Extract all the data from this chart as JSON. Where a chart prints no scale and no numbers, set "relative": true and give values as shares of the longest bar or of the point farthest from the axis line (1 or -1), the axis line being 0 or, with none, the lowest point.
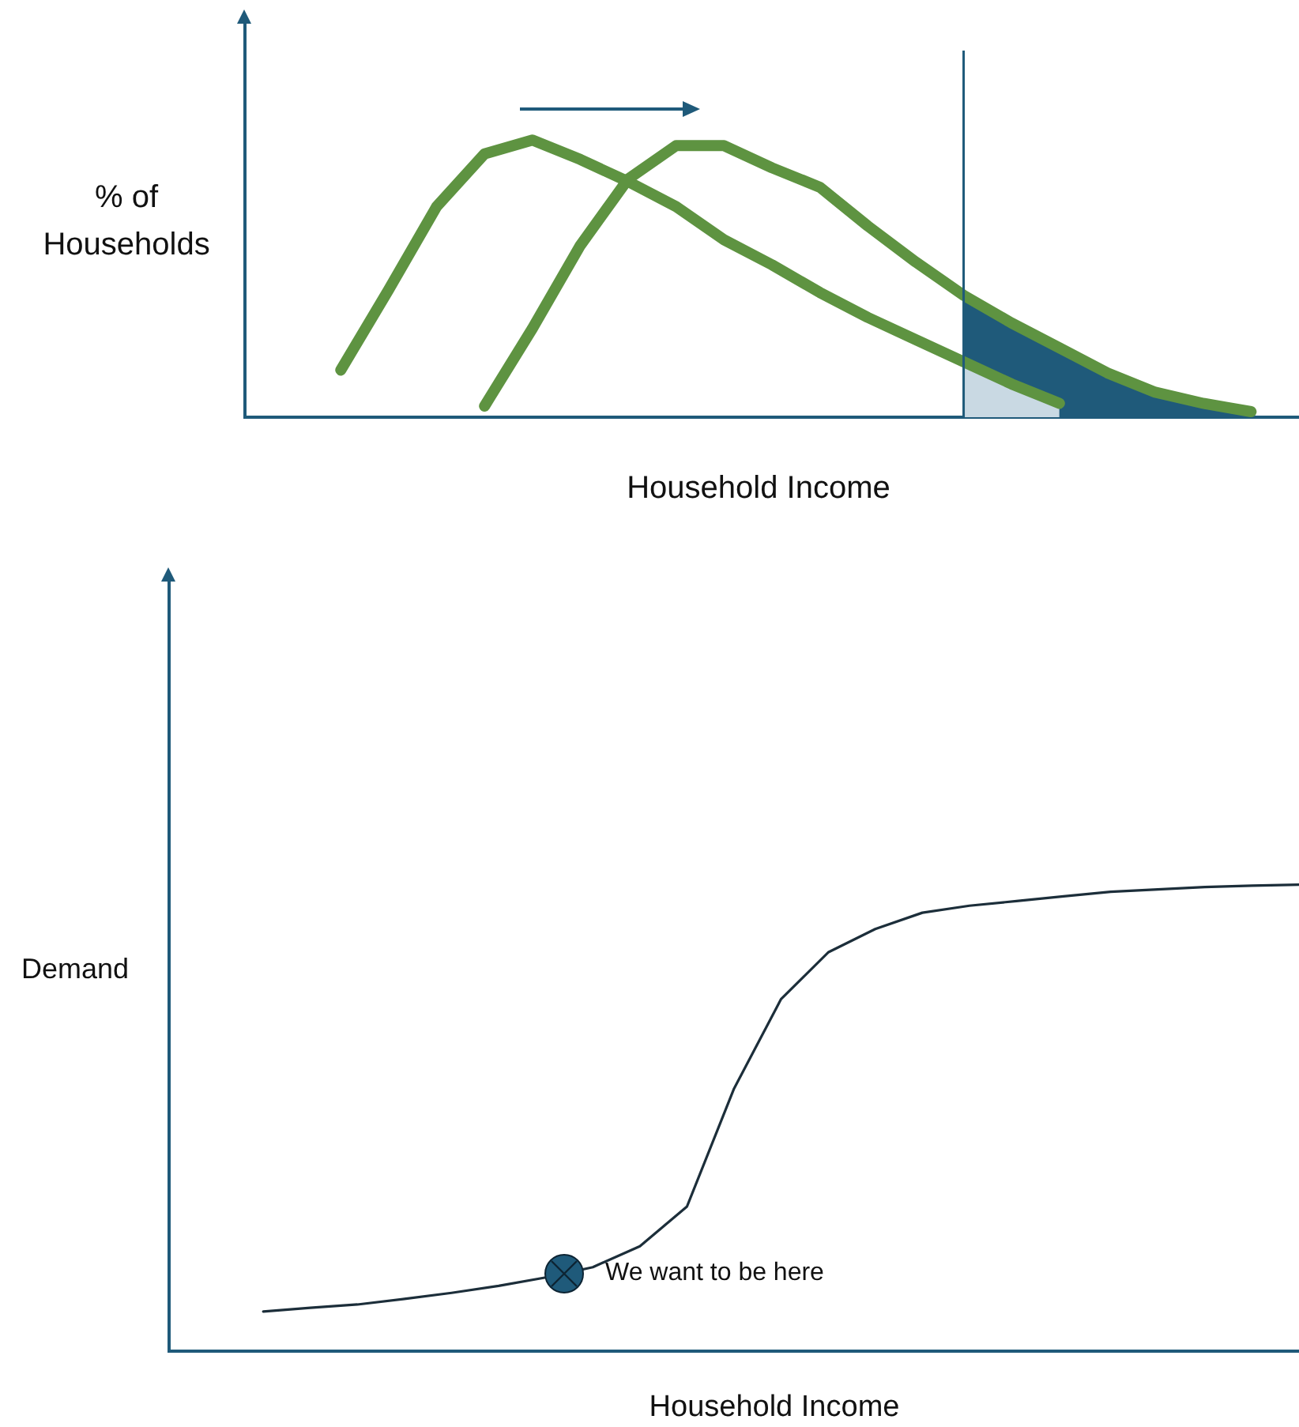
{
  "chart_data": [
    {
      "type": "line",
      "ylabel": "% of Households",
      "xlabel": "Household Income",
      "relative": true,
      "tick_labels": false,
      "grid": false,
      "marker": "none",
      "categories": [
        null,
        null,
        null,
        null,
        null,
        null,
        null,
        null,
        null,
        null,
        null,
        null,
        null,
        null,
        null,
        null,
        null,
        null,
        null,
        null,
        null,
        null,
        null
      ],
      "series": [
        {
          "type": "area",
          "color": "#1f5a7a",
          "values": [
            null,
            null,
            null,
            null,
            null,
            null,
            null,
            null,
            null,
            null,
            null,
            null,
            null,
            null,
            null,
            0.44,
            0.34,
            0.25,
            0.16,
            0.09,
            0.05,
            0.02,
            null
          ]
        },
        {
          "type": "area",
          "color": "#c9d9e3",
          "values": [
            null,
            null,
            null,
            null,
            null,
            null,
            null,
            null,
            null,
            null,
            null,
            null,
            null,
            null,
            null,
            0.2,
            0.12,
            0.05,
            null,
            null,
            null,
            null,
            null
          ]
        },
        {
          "color": "#5e9341",
          "values": [
            null,
            null,
            0.17,
            0.46,
            0.76,
            0.95,
            1,
            0.93,
            0.85,
            0.76,
            0.64,
            0.55,
            0.45,
            0.36,
            0.28,
            0.2,
            0.12,
            0.05,
            null,
            null,
            null,
            null,
            null
          ]
        },
        {
          "color": "#5e9341",
          "values": [
            null,
            null,
            null,
            null,
            null,
            0.04,
            0.32,
            0.62,
            0.86,
            0.98,
            0.98,
            0.9,
            0.83,
            0.69,
            0.56,
            0.44,
            0.34,
            0.25,
            0.16,
            0.09,
            0.05,
            0.02,
            null
          ]
        }
      ]
    },
    {
      "type": "line",
      "ylabel": "Demand",
      "xlabel": "Household Income",
      "relative": true,
      "tick_labels": false,
      "grid": false,
      "marker": "none",
      "categories": [
        null,
        null,
        null,
        null,
        null,
        null,
        null,
        null,
        null,
        null,
        null,
        null,
        null,
        null,
        null,
        null,
        null,
        null,
        null,
        null,
        null,
        null,
        null,
        null,
        null
      ],
      "series": [
        {
          "color": "#1c2e3a",
          "values": [
            null,
            null,
            0.085,
            0.093,
            0.1,
            0.112,
            0.125,
            0.14,
            0.158,
            0.18,
            0.225,
            0.31,
            0.563,
            0.755,
            0.855,
            0.905,
            0.94,
            0.955,
            0.965,
            0.975,
            0.985,
            0.99,
            0.995,
            0.998,
            1
          ]
        }
      ],
      "annotations": [
        "We want to be here"
      ]
    }
  ]
}
